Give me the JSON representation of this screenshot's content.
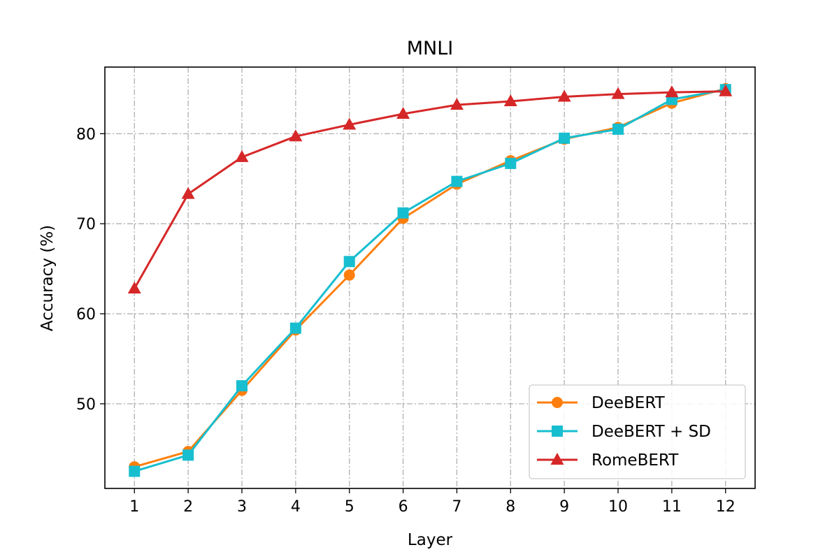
{
  "chart_data": {
    "type": "line",
    "title": "MNLI",
    "xlabel": "Layer",
    "ylabel": "Accuracy (%)",
    "x": [
      1,
      2,
      3,
      4,
      5,
      6,
      7,
      8,
      9,
      10,
      11,
      12
    ],
    "xlim": [
      0.45,
      12.55
    ],
    "ylim": [
      40.6,
      87.4
    ],
    "yticks": [
      50,
      60,
      70,
      80
    ],
    "grid": true,
    "legend_position": "lower-right",
    "series": [
      {
        "name": "DeeBERT",
        "color": "#ff7f0e",
        "marker": "circle",
        "values": [
          43.0,
          44.7,
          51.5,
          58.2,
          64.3,
          70.6,
          74.4,
          77.0,
          79.4,
          80.7,
          83.4,
          85.0
        ]
      },
      {
        "name": "DeeBERT + SD",
        "color": "#17becf",
        "marker": "square",
        "values": [
          42.5,
          44.3,
          52.0,
          58.4,
          65.8,
          71.2,
          74.7,
          76.7,
          79.5,
          80.5,
          83.8,
          84.9
        ]
      },
      {
        "name": "RomeBERT",
        "color": "#d62728",
        "marker": "triangle",
        "values": [
          62.8,
          73.3,
          77.4,
          79.7,
          81.0,
          82.2,
          83.2,
          83.6,
          84.1,
          84.4,
          84.6,
          84.7
        ]
      }
    ]
  }
}
